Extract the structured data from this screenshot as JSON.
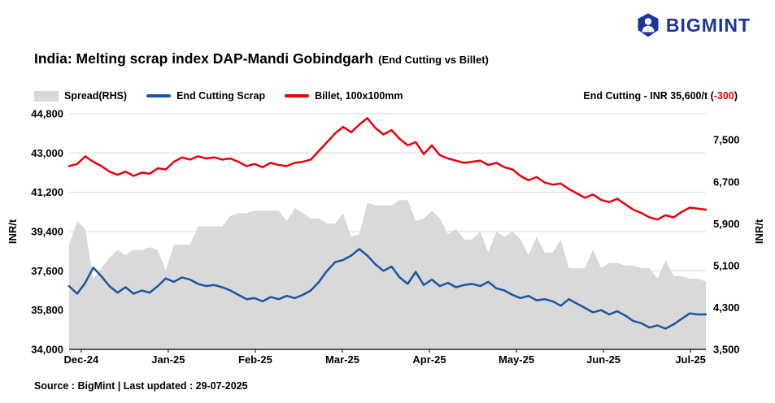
{
  "header": {
    "logo_text": "BIGMINT",
    "brand_color": "#1b339c"
  },
  "title": {
    "main": "India: Melting scrap index DAP-Mandi Gobindgarh",
    "sub": "(End Cutting vs Billet)"
  },
  "legend": [
    {
      "label": "Spread(RHS)",
      "swatch": "area",
      "color": "#d9d9d9"
    },
    {
      "label": "End Cutting Scrap",
      "swatch": "line",
      "color": "#1c55a0"
    },
    {
      "label": "Billet, 100x100mm",
      "swatch": "line",
      "color": "#e8000d"
    }
  ],
  "annotation": {
    "prefix": "End Cutting - INR 35,600/t (",
    "delta": "-300",
    "suffix": ")",
    "delta_color": "#ff0000"
  },
  "source_note": "Source : BigMint | Last updated : 29-07-2025",
  "axes": {
    "left_label": "INR/t",
    "right_label": "INR/t",
    "left_ylim": [
      34000,
      44800
    ],
    "right_ylim": [
      3500,
      8000
    ],
    "left_ticks": {
      "labels": [
        "44,800",
        "43,000",
        "41,200",
        "39,400",
        "37,600",
        "35,800",
        "34,000"
      ],
      "values": [
        44800,
        43000,
        41200,
        39400,
        37600,
        35800,
        34000
      ]
    },
    "right_ticks": {
      "labels": [
        "7,500",
        "6,700",
        "5,900",
        "5,100",
        "4,300",
        "3,500"
      ],
      "values": [
        7500,
        6700,
        5900,
        5100,
        4300,
        3500
      ]
    },
    "x_ticks": [
      "Dec-24",
      "Jan-25",
      "Feb-25",
      "Mar-25",
      "Apr-25",
      "May-25",
      "Jun-25",
      "Jul-25"
    ]
  },
  "chart_data": {
    "type": "line",
    "title": "India: Melting scrap index DAP-Mandi Gobindgarh (End Cutting vs Billet)",
    "x_description": "Time, Dec-2024 to 29-Jul-2025, approx 3-day intervals",
    "left_axis": {
      "label": "INR/t",
      "range": [
        34000,
        44800
      ],
      "tick_step": 1800
    },
    "right_axis": {
      "label": "INR/t",
      "range": [
        3500,
        8000
      ],
      "tick_step": 800
    },
    "grid": true,
    "legend_position": "top-left",
    "latest_values": {
      "end_cutting_scrap": 35600,
      "end_cutting_change": -300
    },
    "series": [
      {
        "name": "Spread(RHS)",
        "type": "area",
        "axis": "right",
        "color": "#d9d9d9",
        "values": [
          5500,
          5950,
          5800,
          4850,
          5050,
          5250,
          5400,
          5300,
          5400,
          5400,
          5450,
          5400,
          5000,
          5500,
          5500,
          5500,
          5850,
          5850,
          5850,
          5850,
          6050,
          6100,
          6100,
          6150,
          6150,
          6150,
          6150,
          5950,
          6200,
          6100,
          6000,
          6000,
          5900,
          5900,
          6100,
          5650,
          5700,
          6300,
          6250,
          6250,
          6250,
          6350,
          6350,
          5950,
          6000,
          6150,
          6000,
          5700,
          5800,
          5600,
          5600,
          5750,
          5350,
          5750,
          5650,
          5750,
          5600,
          5300,
          5650,
          5350,
          5350,
          5600,
          5050,
          5050,
          5050,
          5400,
          5050,
          5150,
          5150,
          5100,
          5100,
          5050,
          5050,
          4850,
          5200,
          4900,
          4900,
          4850,
          4850,
          4800
        ]
      },
      {
        "name": "End Cutting Scrap",
        "type": "line",
        "axis": "left",
        "color": "#1c55a0",
        "values": [
          36900,
          36550,
          37050,
          37750,
          37350,
          36900,
          36600,
          36850,
          36550,
          36700,
          36600,
          36900,
          37250,
          37100,
          37300,
          37200,
          37000,
          36900,
          36950,
          36850,
          36700,
          36500,
          36300,
          36350,
          36200,
          36400,
          36300,
          36450,
          36350,
          36500,
          36700,
          37100,
          37600,
          38000,
          38100,
          38300,
          38600,
          38300,
          37900,
          37600,
          37800,
          37300,
          37000,
          37550,
          36950,
          37200,
          36900,
          37050,
          36850,
          36950,
          37000,
          36900,
          37100,
          36800,
          36700,
          36500,
          36350,
          36450,
          36250,
          36300,
          36200,
          36000,
          36300,
          36100,
          35900,
          35700,
          35800,
          35600,
          35750,
          35550,
          35300,
          35200,
          35000,
          35100,
          34950,
          35150,
          35400,
          35650,
          35600,
          35600
        ]
      },
      {
        "name": "Billet, 100x100mm",
        "type": "line",
        "axis": "left",
        "color": "#e8000d",
        "values": [
          42400,
          42500,
          42850,
          42600,
          42400,
          42150,
          42000,
          42150,
          41950,
          42100,
          42050,
          42300,
          42250,
          42600,
          42800,
          42700,
          42850,
          42750,
          42800,
          42700,
          42750,
          42600,
          42400,
          42500,
          42350,
          42550,
          42450,
          42400,
          42550,
          42600,
          42700,
          43100,
          43500,
          43900,
          44200,
          43950,
          44300,
          44600,
          44150,
          43850,
          44050,
          43650,
          43350,
          43500,
          42950,
          43350,
          42900,
          42750,
          42650,
          42550,
          42600,
          42650,
          42450,
          42550,
          42350,
          42250,
          41950,
          41750,
          41900,
          41650,
          41550,
          41600,
          41350,
          41150,
          40950,
          41100,
          40850,
          40750,
          40900,
          40650,
          40400,
          40250,
          40050,
          39950,
          40150,
          40050,
          40300,
          40500,
          40450,
          40400
        ]
      }
    ]
  }
}
